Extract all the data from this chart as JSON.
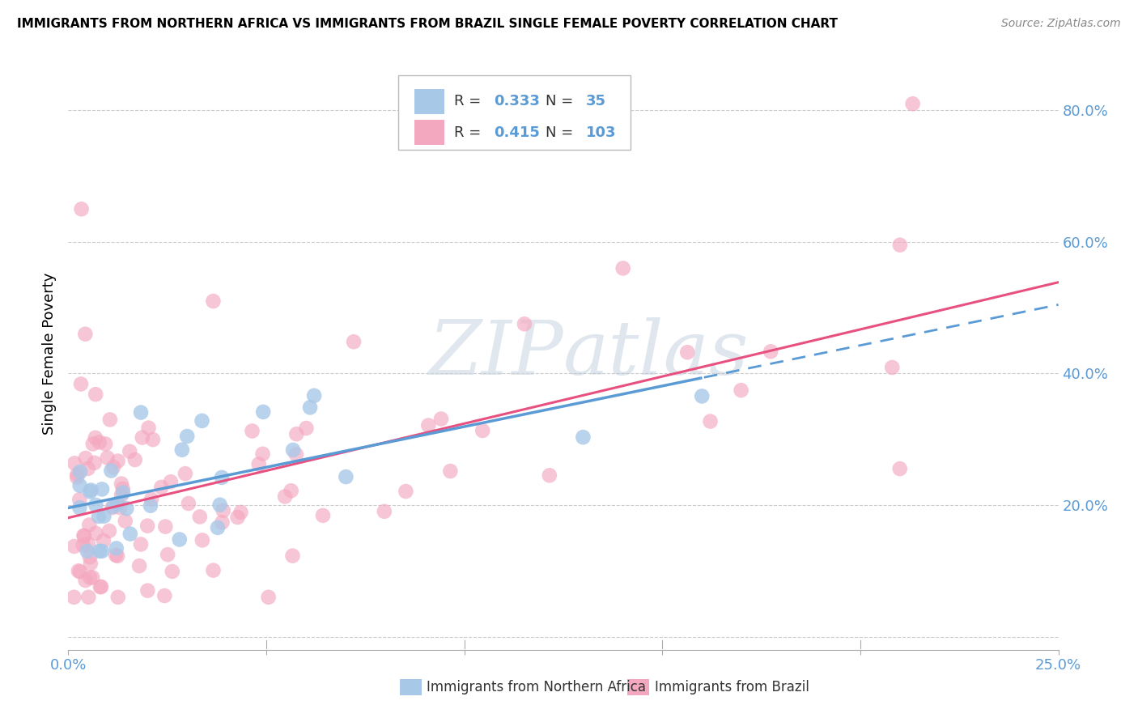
{
  "title": "IMMIGRANTS FROM NORTHERN AFRICA VS IMMIGRANTS FROM BRAZIL SINGLE FEMALE POVERTY CORRELATION CHART",
  "source": "Source: ZipAtlas.com",
  "ylabel": "Single Female Poverty",
  "legend_label1": "Immigrants from Northern Africa",
  "legend_label2": "Immigrants from Brazil",
  "r1": 0.333,
  "n1": 35,
  "r2": 0.415,
  "n2": 103,
  "color1": "#a8c8e8",
  "color2": "#f4a8c0",
  "line_color1": "#5b9bd5",
  "line_color2": "#e85080",
  "text_color": "#5b9bd5",
  "watermark_zip_color": "#c0cfe0",
  "watermark_atlas_color": "#c0cfe0",
  "background_color": "#ffffff",
  "grid_color": "#cccccc",
  "xlim": [
    0.0,
    0.25
  ],
  "ylim": [
    -0.02,
    0.88
  ],
  "ytick_vals": [
    0.0,
    0.2,
    0.4,
    0.6,
    0.8
  ],
  "ytick_labels": [
    "",
    "20.0%",
    "40.0%",
    "60.0%",
    "80.0%"
  ],
  "xtick_vals": [
    0.0,
    0.05,
    0.1,
    0.15,
    0.2,
    0.25
  ],
  "xtick_labels": [
    "0.0%",
    "",
    "",
    "",
    "",
    "25.0%"
  ]
}
